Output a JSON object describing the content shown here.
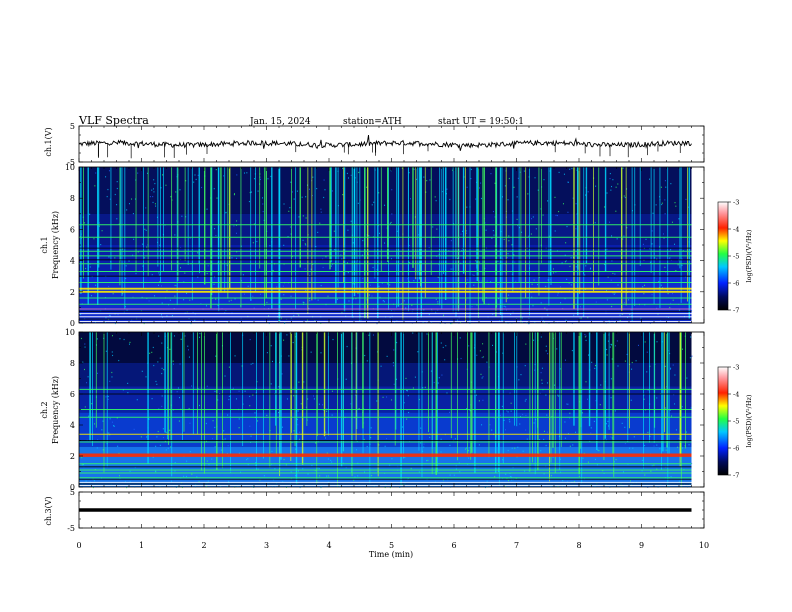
{
  "header": {
    "title": "VLF Spectra",
    "date": "Jan. 15, 2024",
    "station": "station=ATH",
    "start": "start UT = 19:50:1"
  },
  "colors": {
    "background_deep": "#000a3a",
    "noise_blue": "#0a2aff",
    "line_green": "#33ff33",
    "line_yellow": "#ffee00",
    "line_red": "#ff2a00",
    "waveform": "#000000"
  },
  "colorbar": {
    "label": "log(PSD)(V²/Hz)",
    "ticks": [
      "-3",
      "-4",
      "-5",
      "-6",
      "-7"
    ]
  },
  "chart_data": [
    {
      "type": "line",
      "ylabel": "ch.1(V)",
      "yticks": [
        "5",
        "-5"
      ],
      "ylim": [
        -5,
        5
      ],
      "x_range": [
        0,
        9.8
      ],
      "description_values": {
        "baseline_V": 0,
        "typical_amplitude_V": 1
      }
    },
    {
      "type": "heatmap",
      "ylabel": "ch.1\nFrequency (kHz)",
      "yticks": [
        "0",
        "2",
        "4",
        "6",
        "8",
        "10"
      ],
      "ylim": [
        0,
        10
      ],
      "x_range": [
        0,
        9.8
      ],
      "zlim": [
        -7,
        -3
      ],
      "narrowband_lines_kHz": [
        0.1,
        0.4,
        0.6,
        0.9,
        1.2,
        1.6,
        2.0,
        2.2,
        2.6,
        3.3,
        3.8,
        4.3,
        4.6,
        5.5,
        6.3
      ]
    },
    {
      "type": "heatmap",
      "ylabel": "ch.2\nFrequency (kHz)",
      "yticks": [
        "0",
        "2",
        "4",
        "6",
        "8",
        "10"
      ],
      "ylim": [
        0,
        10
      ],
      "x_range": [
        0,
        9.8
      ],
      "zlim": [
        -7,
        -3
      ],
      "narrowband_lines_kHz": [
        0.1,
        0.3,
        0.6,
        0.9,
        1.1,
        1.5,
        2.0,
        2.1,
        2.9,
        3.4,
        4.5,
        5.0,
        6.3
      ]
    },
    {
      "type": "line",
      "ylabel": "ch.3(V)",
      "yticks": [
        "5",
        "-5"
      ],
      "ylim": [
        -5,
        5
      ],
      "x_range": [
        0,
        9.8
      ],
      "xlabel": "Time (min)",
      "xticks": [
        "0",
        "1",
        "2",
        "3",
        "4",
        "5",
        "6",
        "7",
        "8",
        "9",
        "10"
      ],
      "xlim": [
        0,
        10
      ],
      "description_values": {
        "constant_level_V": 0
      }
    }
  ]
}
